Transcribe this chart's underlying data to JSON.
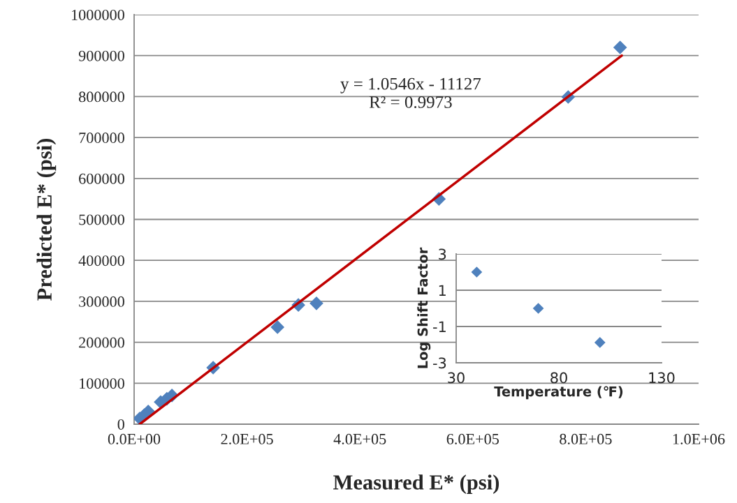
{
  "chart_data": [
    {
      "type": "scatter",
      "xlabel": "Measured E* (psi)",
      "ylabel": "Predicted E* (psi)",
      "xlim": [
        0,
        1000000
      ],
      "xticks": [
        {
          "value": 0,
          "label": "0.0E+00"
        },
        {
          "value": 200000,
          "label": "2.0E+05"
        },
        {
          "value": 400000,
          "label": "4.0E+05"
        },
        {
          "value": 600000,
          "label": "6.0E+05"
        },
        {
          "value": 800000,
          "label": "8.0E+05"
        },
        {
          "value": 1000000,
          "label": "1.0E+06"
        }
      ],
      "ylim": [
        0,
        1000000
      ],
      "yticks": [
        0,
        100000,
        200000,
        300000,
        400000,
        500000,
        600000,
        700000,
        800000,
        900000,
        1000000
      ],
      "grid": "y",
      "series": [
        {
          "marker": "diamond",
          "color": "#4f81bd",
          "x": [
            10000,
            18000,
            25000,
            47000,
            58000,
            67000,
            140000,
            254000,
            291000,
            323000,
            540000,
            769000,
            861000
          ],
          "values": [
            14000,
            22000,
            31000,
            54000,
            62000,
            70000,
            138000,
            237000,
            291000,
            295000,
            550000,
            799000,
            920000
          ]
        },
        {
          "type": "line",
          "color": "#c00000",
          "x": [
            10000,
            864000
          ],
          "values": [
            0,
            900000
          ]
        }
      ],
      "annotations": [
        "y = 1.0546x - 11127\nR² = 0.9973"
      ]
    },
    {
      "type": "scatter",
      "xlabel": "Temperature (℉)",
      "ylabel": "Log Shift Factor",
      "xlim": [
        30,
        130
      ],
      "xticks": [
        30,
        80,
        130
      ],
      "ylim": [
        -3,
        3
      ],
      "yticks": [
        3,
        1,
        -1,
        -3
      ],
      "grid": "y",
      "marker": "diamond",
      "series": [
        {
          "color": "#4f81bd",
          "x": [
            40,
            70,
            100
          ],
          "values": [
            2,
            0,
            -1.88
          ]
        }
      ]
    }
  ]
}
